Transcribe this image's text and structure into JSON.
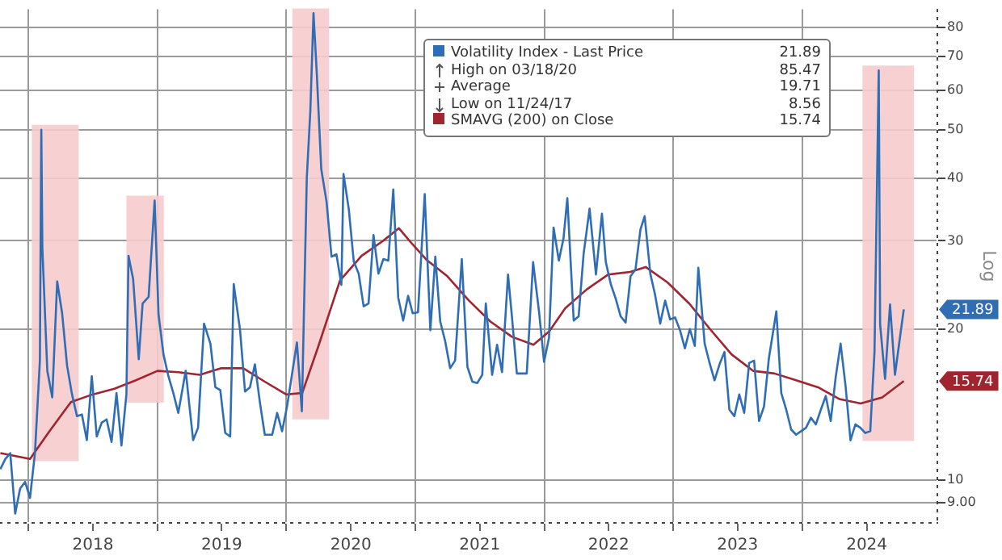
{
  "chart_data": {
    "type": "line",
    "ylabel": "Log",
    "log": "y",
    "grid": true,
    "legend": "top right",
    "marker": "none",
    "line_style": "solid",
    "xlim": [
      "2017-10-12",
      "2025-01-18"
    ],
    "ylim": [
      8.2,
      87
    ],
    "yticks": [
      {
        "value": 9,
        "label": "9.00"
      },
      10,
      20,
      30,
      40,
      50,
      60,
      70,
      80
    ],
    "xticks": [
      {
        "value": "2018-01-01",
        "label": null
      },
      {
        "value": "2018-07-02",
        "label": "2018"
      },
      {
        "value": "2019-01-01",
        "label": null
      },
      {
        "value": "2019-07-02",
        "label": "2019"
      },
      {
        "value": "2020-01-01",
        "label": null
      },
      {
        "value": "2020-07-02",
        "label": "2020"
      },
      {
        "value": "2021-01-01",
        "label": null
      },
      {
        "value": "2021-07-02",
        "label": "2021"
      },
      {
        "value": "2022-01-01",
        "label": null
      },
      {
        "value": "2022-07-02",
        "label": "2022"
      },
      {
        "value": "2023-01-01",
        "label": null
      },
      {
        "value": "2023-07-02",
        "label": "2023"
      },
      {
        "value": "2024-01-01",
        "label": null
      },
      {
        "value": "2024-07-02",
        "label": "2024"
      }
    ],
    "bands": [
      {
        "axis": "x",
        "from": "2018-01-10",
        "to": "2018-05-23",
        "color": "#f6cccc"
      },
      {
        "axis": "x",
        "from": "2018-10-05",
        "to": "2019-01-19",
        "color": "#f6cccc"
      },
      {
        "axis": "x",
        "from": "2020-01-18",
        "to": "2020-05-01",
        "color": "#f6cccc"
      },
      {
        "axis": "x",
        "from": "2024-06-20",
        "to": "2024-11-13",
        "color": "#f6cccc"
      }
    ],
    "annotations": [
      "21.89",
      "High on 03/18/20",
      "85.47",
      "Average",
      "19.71",
      "Low on 11/24/17",
      "8.56",
      "15.74",
      "21.89",
      "15.74"
    ],
    "series": [
      {
        "name": "Volatility Index - Last Price",
        "color": "#2f6db5",
        "x": [
          "2017-10-13",
          "2017-10-27",
          "2017-11-10",
          "2017-11-24",
          "2017-12-08",
          "2017-12-22",
          "2018-01-05",
          "2018-01-19",
          "2018-02-02",
          "2018-02-06",
          "2018-02-09",
          "2018-02-23",
          "2018-03-09",
          "2018-03-23",
          "2018-04-06",
          "2018-04-20",
          "2018-05-04",
          "2018-05-18",
          "2018-06-01",
          "2018-06-15",
          "2018-06-29",
          "2018-07-13",
          "2018-07-27",
          "2018-08-10",
          "2018-08-24",
          "2018-09-07",
          "2018-09-21",
          "2018-10-05",
          "2018-10-11",
          "2018-10-24",
          "2018-11-09",
          "2018-11-20",
          "2018-12-07",
          "2018-12-24",
          "2019-01-04",
          "2019-01-18",
          "2019-02-01",
          "2019-02-15",
          "2019-03-01",
          "2019-03-22",
          "2019-04-12",
          "2019-04-26",
          "2019-05-13",
          "2019-05-31",
          "2019-06-14",
          "2019-06-28",
          "2019-07-12",
          "2019-07-26",
          "2019-08-05",
          "2019-08-23",
          "2019-09-06",
          "2019-09-20",
          "2019-10-04",
          "2019-10-18",
          "2019-11-01",
          "2019-11-22",
          "2019-12-06",
          "2019-12-20",
          "2020-01-03",
          "2020-01-31",
          "2020-02-14",
          "2020-02-28",
          "2020-03-09",
          "2020-03-18",
          "2020-03-27",
          "2020-04-09",
          "2020-04-24",
          "2020-05-08",
          "2020-05-22",
          "2020-06-05",
          "2020-06-11",
          "2020-06-26",
          "2020-07-10",
          "2020-07-24",
          "2020-08-07",
          "2020-08-21",
          "2020-09-04",
          "2020-09-18",
          "2020-10-02",
          "2020-10-16",
          "2020-10-30",
          "2020-11-13",
          "2020-11-27",
          "2020-12-11",
          "2020-12-24",
          "2021-01-08",
          "2021-01-27",
          "2021-02-12",
          "2021-02-26",
          "2021-03-12",
          "2021-03-26",
          "2021-04-09",
          "2021-04-23",
          "2021-05-12",
          "2021-05-28",
          "2021-06-11",
          "2021-06-25",
          "2021-07-09",
          "2021-07-19",
          "2021-08-06",
          "2021-08-20",
          "2021-09-03",
          "2021-09-20",
          "2021-10-01",
          "2021-10-15",
          "2021-10-29",
          "2021-11-12",
          "2021-11-30",
          "2021-12-17",
          "2021-12-31",
          "2022-01-14",
          "2022-01-27",
          "2022-02-11",
          "2022-02-24",
          "2022-03-07",
          "2022-03-25",
          "2022-04-08",
          "2022-04-22",
          "2022-05-09",
          "2022-05-27",
          "2022-06-13",
          "2022-06-24",
          "2022-07-08",
          "2022-07-22",
          "2022-08-05",
          "2022-08-19",
          "2022-09-02",
          "2022-09-16",
          "2022-09-30",
          "2022-10-12",
          "2022-10-28",
          "2022-11-10",
          "2022-11-25",
          "2022-12-09",
          "2022-12-23",
          "2023-01-06",
          "2023-01-20",
          "2023-02-03",
          "2023-02-17",
          "2023-03-03",
          "2023-03-13",
          "2023-03-31",
          "2023-04-14",
          "2023-04-28",
          "2023-05-12",
          "2023-05-26",
          "2023-06-09",
          "2023-06-23",
          "2023-07-07",
          "2023-07-21",
          "2023-08-04",
          "2023-08-18",
          "2023-09-01",
          "2023-09-15",
          "2023-09-29",
          "2023-10-20",
          "2023-11-03",
          "2023-11-17",
          "2023-12-01",
          "2023-12-15",
          "2023-12-29",
          "2024-01-12",
          "2024-01-26",
          "2024-02-09",
          "2024-02-23",
          "2024-03-08",
          "2024-03-22",
          "2024-04-05",
          "2024-04-19",
          "2024-05-03",
          "2024-05-17",
          "2024-05-31",
          "2024-06-14",
          "2024-06-28",
          "2024-07-12",
          "2024-07-24",
          "2024-08-05",
          "2024-08-09",
          "2024-08-23",
          "2024-09-06",
          "2024-09-20",
          "2024-10-04",
          "2024-10-15"
        ],
        "values": [
          10.5,
          11.0,
          11.3,
          8.56,
          9.6,
          9.9,
          9.2,
          11.3,
          17.3,
          50,
          29,
          16.5,
          14.6,
          24.9,
          21.5,
          16.9,
          14.8,
          13.4,
          13.5,
          12.0,
          16.1,
          12.2,
          13.0,
          13.2,
          11.9,
          14.9,
          11.7,
          14.8,
          28.0,
          25.2,
          17.4,
          22.5,
          23.2,
          36.1,
          21.4,
          17.8,
          16.1,
          14.9,
          13.6,
          16.5,
          12.0,
          12.7,
          20.5,
          18.7,
          15.3,
          15.1,
          12.4,
          12.2,
          24.6,
          19.9,
          15.0,
          15.3,
          17.0,
          14.3,
          12.3,
          12.3,
          13.6,
          12.5,
          14.0,
          18.8,
          13.7,
          40.1,
          54.5,
          85.47,
          65.5,
          41.7,
          35.9,
          27.9,
          28.2,
          24.5,
          40.8,
          34.7,
          27.3,
          25.8,
          22.2,
          22.5,
          30.8,
          25.8,
          27.6,
          27.4,
          38.0,
          23.1,
          20.8,
          23.3,
          21.5,
          21.6,
          37.2,
          19.9,
          27.9,
          20.7,
          18.9,
          16.7,
          17.3,
          27.6,
          16.8,
          15.7,
          15.6,
          16.2,
          22.5,
          16.2,
          18.6,
          16.4,
          25.7,
          21.2,
          16.3,
          16.3,
          16.3,
          27.2,
          21.6,
          17.2,
          19.2,
          31.9,
          27.4,
          30.3,
          36.5,
          20.8,
          21.2,
          28.2,
          34.8,
          25.7,
          34.0,
          27.2,
          24.6,
          23.0,
          21.2,
          20.6,
          25.5,
          26.3,
          31.6,
          33.6,
          25.8,
          23.5,
          20.5,
          22.8,
          20.9,
          21.1,
          19.9,
          18.3,
          20.0,
          18.5,
          26.5,
          18.7,
          17.1,
          15.8,
          17.0,
          18.0,
          13.8,
          13.4,
          14.8,
          13.6,
          17.1,
          17.3,
          13.1,
          14.0,
          17.5,
          21.7,
          14.9,
          13.8,
          12.6,
          12.3,
          12.5,
          12.7,
          13.3,
          12.9,
          13.8,
          14.7,
          13.1,
          16.0,
          18.7,
          15.4,
          11.99,
          12.9,
          12.7,
          12.4,
          12.5,
          18.0,
          65.7,
          20.4,
          15.9,
          22.4,
          16.2,
          19.2,
          21.89
        ]
      },
      {
        "name": "SMAVG (200) on Close",
        "color": "#a0252f",
        "x": [
          "2017-10-13",
          "2018-01-05",
          "2018-03-01",
          "2018-05-01",
          "2018-07-01",
          "2018-09-01",
          "2018-11-01",
          "2019-01-01",
          "2019-03-01",
          "2019-05-01",
          "2019-07-01",
          "2019-09-01",
          "2019-11-01",
          "2020-01-01",
          "2020-02-15",
          "2020-04-01",
          "2020-06-01",
          "2020-08-01",
          "2020-10-01",
          "2020-11-15",
          "2020-12-15",
          "2021-02-01",
          "2021-04-01",
          "2021-06-01",
          "2021-08-01",
          "2021-10-01",
          "2021-12-01",
          "2022-01-15",
          "2022-03-01",
          "2022-05-01",
          "2022-07-01",
          "2022-09-01",
          "2022-10-15",
          "2022-12-15",
          "2023-02-15",
          "2023-04-15",
          "2023-06-15",
          "2023-08-15",
          "2023-10-15",
          "2023-12-15",
          "2024-02-15",
          "2024-04-15",
          "2024-06-15",
          "2024-08-15",
          "2024-10-15"
        ],
        "values": [
          11.3,
          11.0,
          12.5,
          14.3,
          14.8,
          15.2,
          15.8,
          16.5,
          16.4,
          16.2,
          16.7,
          16.7,
          15.7,
          14.8,
          14.9,
          18.5,
          25.0,
          28.0,
          30.0,
          31.8,
          30.0,
          27.5,
          25.5,
          22.8,
          20.7,
          19.3,
          18.6,
          19.8,
          22.0,
          24.0,
          25.7,
          26.0,
          26.6,
          24.8,
          22.5,
          20.0,
          17.8,
          16.5,
          16.3,
          15.8,
          15.3,
          14.5,
          14.2,
          14.6,
          15.74
        ]
      }
    ]
  }
}
